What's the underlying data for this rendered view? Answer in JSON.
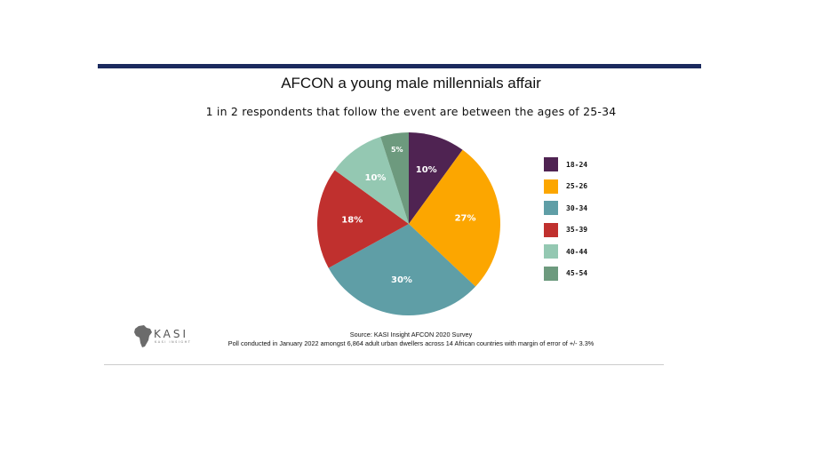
{
  "chart_data": {
    "type": "pie",
    "title": "AFCON a young male millennials affair",
    "subtitle": "1 in 2 respondents that follow the event are between the ages of 25-34",
    "categories": [
      "18-24",
      "25-26",
      "30-34",
      "35-39",
      "40-44",
      "45-54"
    ],
    "values": [
      10,
      27,
      30,
      18,
      10,
      5
    ],
    "data_labels": [
      "10%",
      "27%",
      "30%",
      "18%",
      "10%",
      "5%"
    ],
    "colors": [
      "#4f2352",
      "#fca600",
      "#5f9ea6",
      "#c0302e",
      "#94c8b2",
      "#6d9a7e"
    ],
    "legend_position": "right",
    "start_angle_deg": 0,
    "direction": "clockwise"
  },
  "logo": {
    "name": "KASI",
    "tagline": "KASI INSIGHT",
    "icon": "africa-map-icon"
  },
  "source": {
    "line1": "Source: KASI Insight AFCON 2020 Survey",
    "line2": "Poll conducted in January 2022 amongst 6,864 adult urban dwellers across 14 African countries with margin of error of +/- 3.3%"
  },
  "colors": {
    "rule": "#1b2a5e",
    "divider": "#cccccc"
  }
}
